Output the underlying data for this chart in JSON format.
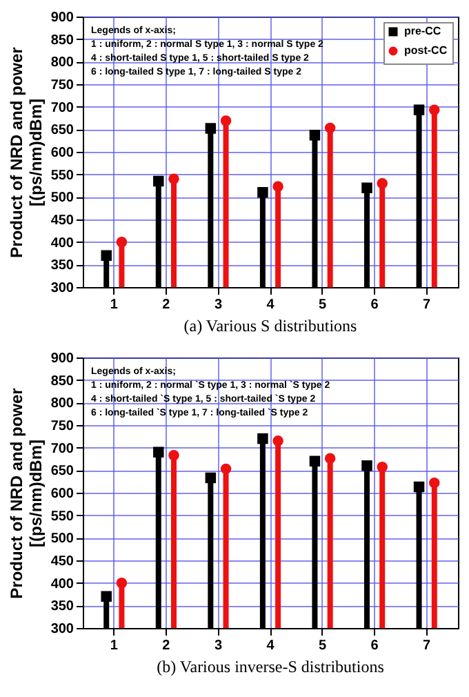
{
  "chart_data": [
    {
      "type": "lollipop",
      "title": "(a) Various S distributions",
      "ylabel": "Product of NRD and power\n[(ps/nm)dBm]",
      "categories": [
        "1",
        "2",
        "3",
        "4",
        "5",
        "6",
        "7"
      ],
      "series": [
        {
          "name": "pre-CC",
          "color": "#000000",
          "marker": "square",
          "values": [
            370,
            535,
            652,
            510,
            637,
            520,
            693
          ]
        },
        {
          "name": "post-CC",
          "color": "#ee1111",
          "marker": "circle",
          "values": [
            400,
            540,
            669,
            523,
            653,
            530,
            693
          ]
        }
      ],
      "ylim": [
        300,
        900
      ],
      "yticks": [
        300,
        350,
        400,
        450,
        500,
        550,
        600,
        650,
        700,
        750,
        800,
        850,
        900
      ],
      "grid": true,
      "legend": "top right",
      "annotations": [
        "Legends of x-axis;",
        "1 : uniform, 2 : normal S type 1, 3 : normal S type 2",
        "4 : short-tailed S type 1, 5 : short-tailed S type 2",
        "6 : long-tailed S type 1,  7 : long-tailed S type 2"
      ]
    },
    {
      "type": "lollipop",
      "title": "(b) Various inverse-S distributions",
      "ylabel": "Product of NRD and power\n[(ps/nm)dBm]",
      "categories": [
        "1",
        "2",
        "3",
        "4",
        "5",
        "6",
        "7"
      ],
      "series": [
        {
          "name": "pre-CC",
          "color": "#000000",
          "marker": "square",
          "values": [
            370,
            690,
            633,
            720,
            670,
            660,
            613
          ]
        },
        {
          "name": "post-CC",
          "color": "#ee1111",
          "marker": "circle",
          "values": [
            400,
            683,
            653,
            715,
            676,
            657,
            622
          ]
        }
      ],
      "ylim": [
        300,
        900
      ],
      "yticks": [
        300,
        350,
        400,
        450,
        500,
        550,
        600,
        650,
        700,
        750,
        800,
        850,
        900
      ],
      "grid": true,
      "legend": "top right",
      "annotations": [
        "Legends of x-axis;",
        "1 : uniform, 2 : normal `S type 1, 3 : normal `S type 2",
        "4 : short-tailed `S type 1, 5 : short-tailed `S type 2",
        "6 : long-tailed `S type 1,  7 : long-tailed `S type 2"
      ]
    }
  ]
}
